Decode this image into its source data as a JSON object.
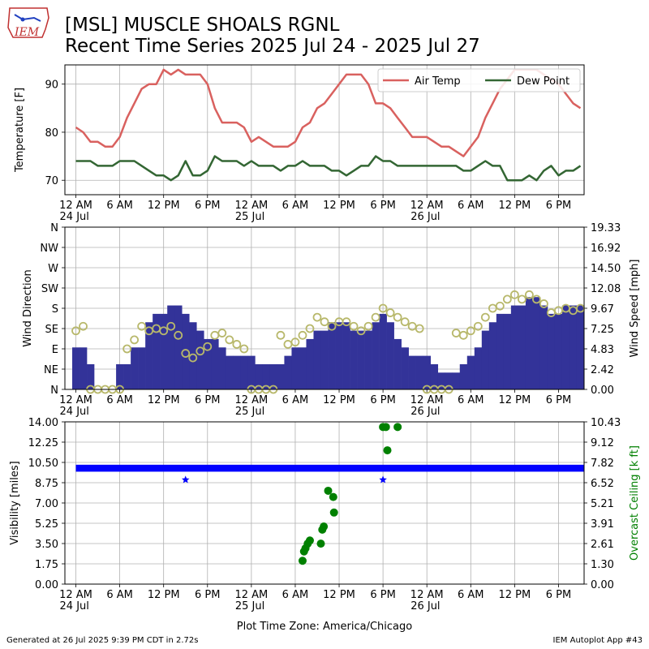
{
  "header": {
    "title_line1": "[MSL] MUSCLE SHOALS RGNL",
    "title_line2": "Recent Time Series 2025 Jul 24 - 2025 Jul 27",
    "logo_text": "IEM"
  },
  "footer": {
    "left": "Generated at 26 Jul 2025 9:39 PM CDT in 2.72s",
    "right": "IEM Autoplot App #43"
  },
  "colors": {
    "air_temp": "#d9615f",
    "dew_point": "#336633",
    "wind_speed_bars": "#333399",
    "wind_direction_marker": "#b8b86b",
    "visibility": "#0000ff",
    "ceiling": "#008000"
  },
  "chart_data": [
    {
      "type": "line",
      "ylabel": "Temperature [F]",
      "ylim": [
        67,
        94
      ],
      "yticks": [
        70,
        80,
        90
      ],
      "xlim_hours": [
        -1.5,
        69.5
      ],
      "xticks": [
        {
          "h": 0,
          "label": "12 AM",
          "sub": "24 Jul"
        },
        {
          "h": 6,
          "label": "6 AM"
        },
        {
          "h": 12,
          "label": "12 PM"
        },
        {
          "h": 18,
          "label": "6 PM"
        },
        {
          "h": 24,
          "label": "12 AM",
          "sub": "25 Jul"
        },
        {
          "h": 30,
          "label": "6 AM"
        },
        {
          "h": 36,
          "label": "12 PM"
        },
        {
          "h": 42,
          "label": "6 PM"
        },
        {
          "h": 48,
          "label": "12 AM",
          "sub": "26 Jul"
        },
        {
          "h": 54,
          "label": "6 AM"
        },
        {
          "h": 60,
          "label": "12 PM"
        },
        {
          "h": 66,
          "label": "6 PM"
        }
      ],
      "grid": true,
      "legend": {
        "placement": "upper-right"
      },
      "series": [
        {
          "name": "Air Temp",
          "x": [
            0,
            1,
            2,
            3,
            4,
            5,
            6,
            7,
            8,
            9,
            10,
            11,
            12,
            13,
            14,
            15,
            16,
            17,
            18,
            19,
            20,
            21,
            22,
            23,
            24,
            25,
            26,
            27,
            28,
            29,
            30,
            31,
            32,
            33,
            34,
            35,
            36,
            37,
            38,
            39,
            40,
            41,
            42,
            43,
            44,
            45,
            46,
            47,
            48,
            49,
            50,
            51,
            52,
            53,
            54,
            55,
            56,
            57,
            58,
            59,
            60,
            61,
            62,
            63,
            64,
            65,
            66,
            67,
            68,
            69
          ],
          "y": [
            81,
            80,
            78,
            78,
            77,
            77,
            79,
            83,
            86,
            89,
            90,
            90,
            93,
            92,
            93,
            92,
            92,
            92,
            90,
            85,
            82,
            82,
            82,
            81,
            78,
            79,
            78,
            77,
            77,
            77,
            78,
            81,
            82,
            85,
            86,
            88,
            90,
            92,
            92,
            92,
            90,
            86,
            86,
            85,
            83,
            81,
            79,
            79,
            79,
            78,
            77,
            77,
            76,
            75,
            77,
            79,
            83,
            86,
            89,
            91,
            93,
            93,
            93,
            93,
            92,
            91,
            90,
            88,
            86,
            85
          ]
        },
        {
          "name": "Dew Point",
          "x": [
            0,
            1,
            2,
            3,
            4,
            5,
            6,
            7,
            8,
            9,
            10,
            11,
            12,
            13,
            14,
            15,
            16,
            17,
            18,
            19,
            20,
            21,
            22,
            23,
            24,
            25,
            26,
            27,
            28,
            29,
            30,
            31,
            32,
            33,
            34,
            35,
            36,
            37,
            38,
            39,
            40,
            41,
            42,
            43,
            44,
            45,
            46,
            47,
            48,
            49,
            50,
            51,
            52,
            53,
            54,
            55,
            56,
            57,
            58,
            59,
            60,
            61,
            62,
            63,
            64,
            65,
            66,
            67,
            68,
            69
          ],
          "y": [
            74,
            74,
            74,
            73,
            73,
            73,
            74,
            74,
            74,
            73,
            72,
            71,
            71,
            70,
            71,
            74,
            71,
            71,
            72,
            75,
            74,
            74,
            74,
            73,
            74,
            73,
            73,
            73,
            72,
            73,
            73,
            74,
            73,
            73,
            73,
            72,
            72,
            71,
            72,
            73,
            73,
            75,
            74,
            74,
            73,
            73,
            73,
            73,
            73,
            73,
            73,
            73,
            73,
            72,
            72,
            73,
            74,
            73,
            73,
            70,
            70,
            70,
            71,
            70,
            72,
            73,
            71,
            72,
            72,
            73
          ]
        }
      ]
    },
    {
      "type": "bar",
      "ylabel": "Wind Direction",
      "ylabel_right": "Wind Speed [mph]",
      "direction_ticks": [
        "N",
        "NE",
        "E",
        "SE",
        "S",
        "SW",
        "W",
        "NW",
        "N"
      ],
      "ylim_direction_deg": [
        0,
        360
      ],
      "ylim_speed": [
        0,
        19.33
      ],
      "speed_ticks": [
        "0.00",
        "2.42",
        "4.83",
        "7.25",
        "9.67",
        "12.08",
        "14.50",
        "16.92",
        "19.33"
      ],
      "grid": true,
      "speed_hourly_x": [
        0,
        1,
        2,
        3,
        4,
        5,
        6,
        7,
        8,
        9,
        10,
        11,
        12,
        13,
        14,
        15,
        16,
        17,
        18,
        19,
        20,
        21,
        22,
        23,
        24,
        25,
        26,
        27,
        28,
        29,
        30,
        31,
        32,
        33,
        34,
        35,
        36,
        37,
        38,
        39,
        40,
        41,
        42,
        43,
        44,
        45,
        46,
        47,
        48,
        49,
        50,
        51,
        52,
        53,
        54,
        55,
        56,
        57,
        58,
        59,
        60,
        61,
        62,
        63,
        64,
        65,
        66,
        67,
        68,
        69
      ],
      "speed_hourly_mph": [
        5,
        5,
        3,
        0,
        0,
        0,
        3,
        3,
        5,
        5,
        8,
        9,
        9,
        10,
        10,
        9,
        8,
        7,
        6,
        6,
        5,
        4,
        4,
        4,
        4,
        3,
        3,
        3,
        3,
        4,
        5,
        5,
        6,
        7,
        7,
        8,
        8,
        8,
        7,
        7,
        7,
        8,
        9,
        8,
        6,
        5,
        4,
        4,
        4,
        3,
        2,
        2,
        2,
        3,
        4,
        5,
        7,
        8,
        9,
        9,
        10,
        10,
        11,
        11,
        10,
        9,
        9,
        10,
        10,
        10
      ],
      "direction_hourly_x": [
        0,
        1,
        2,
        3,
        4,
        5,
        6,
        7,
        8,
        9,
        10,
        11,
        12,
        13,
        14,
        15,
        16,
        17,
        18,
        19,
        20,
        21,
        22,
        23,
        24,
        25,
        26,
        27,
        28,
        29,
        30,
        31,
        32,
        33,
        34,
        35,
        36,
        37,
        38,
        39,
        40,
        41,
        42,
        43,
        44,
        45,
        46,
        47,
        48,
        49,
        50,
        51,
        52,
        53,
        54,
        55,
        56,
        57,
        58,
        59,
        60,
        61,
        62,
        63,
        64,
        65,
        66,
        67,
        68,
        69
      ],
      "direction_hourly_deg": [
        130,
        140,
        0,
        0,
        0,
        0,
        0,
        90,
        110,
        140,
        130,
        135,
        130,
        140,
        120,
        80,
        70,
        85,
        95,
        120,
        125,
        110,
        100,
        90,
        0,
        0,
        0,
        0,
        120,
        100,
        105,
        120,
        135,
        160,
        150,
        140,
        150,
        150,
        140,
        130,
        140,
        160,
        180,
        170,
        160,
        150,
        140,
        135,
        0,
        0,
        0,
        0,
        125,
        120,
        130,
        140,
        160,
        180,
        185,
        200,
        210,
        200,
        210,
        200,
        190,
        170,
        175,
        180,
        175,
        180
      ]
    },
    {
      "type": "scatter",
      "ylabel": "Visibility [miles]",
      "ylabel_right": "Overcast Ceiling [k ft]",
      "ylim_visibility": [
        0,
        14
      ],
      "visibility_ticks": [
        "0.00",
        "1.75",
        "3.50",
        "5.25",
        "7.00",
        "8.75",
        "10.50",
        "12.25",
        "14.00"
      ],
      "ylim_ceiling": [
        0,
        10.43
      ],
      "ceiling_ticks": [
        "0.00",
        "1.30",
        "2.61",
        "3.91",
        "5.21",
        "6.52",
        "7.82",
        "9.12",
        "10.43"
      ],
      "grid": true,
      "visibility_band_miles": [
        9.7,
        10.3
      ],
      "visibility_band_x": [
        0,
        69.5
      ],
      "visibility_dips": [
        {
          "x": 15,
          "y": 9.0
        },
        {
          "x": 42,
          "y": 9.0
        }
      ],
      "ceiling_points": [
        {
          "x": 31.0,
          "y": 1.5
        },
        {
          "x": 31.2,
          "y": 2.1
        },
        {
          "x": 31.4,
          "y": 2.3
        },
        {
          "x": 31.7,
          "y": 2.6
        },
        {
          "x": 32.0,
          "y": 2.8
        },
        {
          "x": 33.5,
          "y": 2.6
        },
        {
          "x": 33.7,
          "y": 3.5
        },
        {
          "x": 33.9,
          "y": 3.7
        },
        {
          "x": 34.5,
          "y": 6.0
        },
        {
          "x": 35.2,
          "y": 5.6
        },
        {
          "x": 35.3,
          "y": 4.6
        },
        {
          "x": 42.0,
          "y": 10.1
        },
        {
          "x": 42.4,
          "y": 10.1
        },
        {
          "x": 42.6,
          "y": 8.6
        },
        {
          "x": 44.0,
          "y": 10.1
        }
      ]
    }
  ],
  "xaxis_title": "Plot Time Zone: America/Chicago"
}
